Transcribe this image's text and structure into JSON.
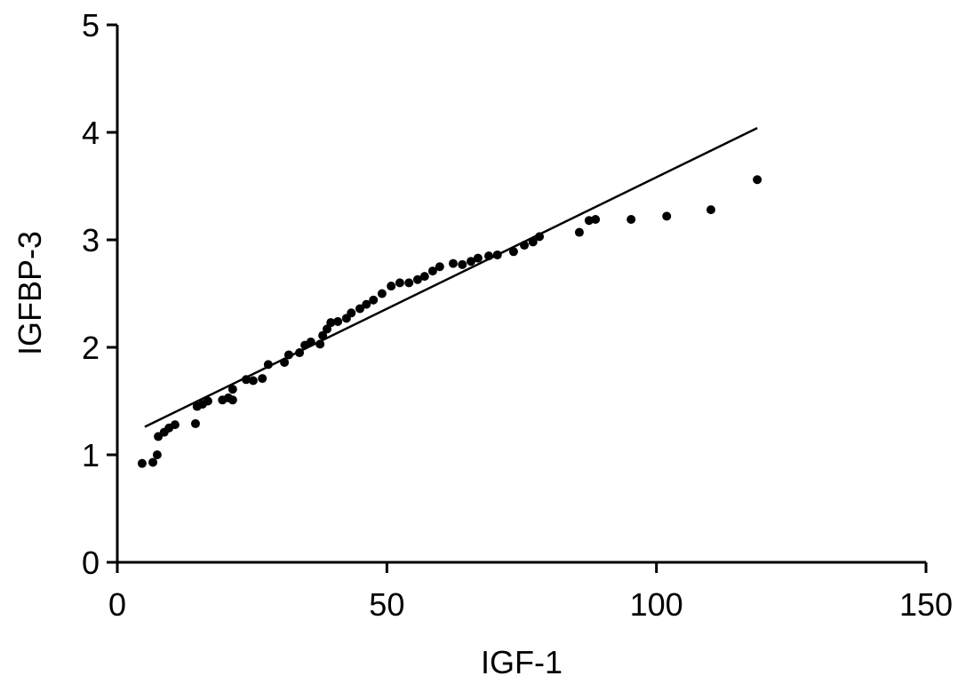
{
  "chart_data": {
    "type": "scatter",
    "x_label": "IGF-1",
    "y_label": "IGFBP-3",
    "series": [
      {
        "color": "#000000",
        "x": [
          4.6,
          6.6,
          7.4,
          7.6,
          8.7,
          9.6,
          10.7,
          14.5,
          14.8,
          15.8,
          16.8,
          19.5,
          20.6,
          21.4,
          21.4,
          23.9,
          25.2,
          26.9,
          28.0,
          31.0,
          31.8,
          33.8,
          34.8,
          35.9,
          37.6,
          38.1,
          38.9,
          39.6,
          40.9,
          42.5,
          43.4,
          45.0,
          46.2,
          47.5,
          49.1,
          50.8,
          52.4,
          54.1,
          55.7,
          57.0,
          58.5,
          59.8,
          62.3,
          64.0,
          65.6,
          66.9,
          68.9,
          70.5,
          73.5,
          75.5,
          77.1,
          78.3,
          85.7,
          87.5,
          88.7,
          95.3,
          101.9,
          110.1,
          118.7
        ],
        "values": [
          0.92,
          0.93,
          1.0,
          1.17,
          1.21,
          1.25,
          1.28,
          1.29,
          1.45,
          1.47,
          1.5,
          1.51,
          1.53,
          1.61,
          1.51,
          1.7,
          1.69,
          1.71,
          1.84,
          1.86,
          1.93,
          1.95,
          2.02,
          2.05,
          2.03,
          2.11,
          2.17,
          2.23,
          2.24,
          2.27,
          2.32,
          2.36,
          2.4,
          2.44,
          2.5,
          2.57,
          2.6,
          2.6,
          2.63,
          2.66,
          2.71,
          2.75,
          2.78,
          2.77,
          2.8,
          2.83,
          2.85,
          2.86,
          2.89,
          2.95,
          2.98,
          3.03,
          3.07,
          3.18,
          3.19,
          3.19,
          3.22,
          3.28,
          3.56
        ]
      }
    ],
    "fit_line": {
      "color": "#000000",
      "x": [
        5.1,
        118.7
      ],
      "values": [
        1.26,
        4.04
      ]
    },
    "xlim": [
      0,
      150
    ],
    "ylim": [
      0,
      5
    ],
    "xticks": [
      0,
      50,
      100,
      150
    ],
    "yticks": [
      0,
      1,
      2,
      3,
      4,
      5
    ],
    "grid": false
  }
}
